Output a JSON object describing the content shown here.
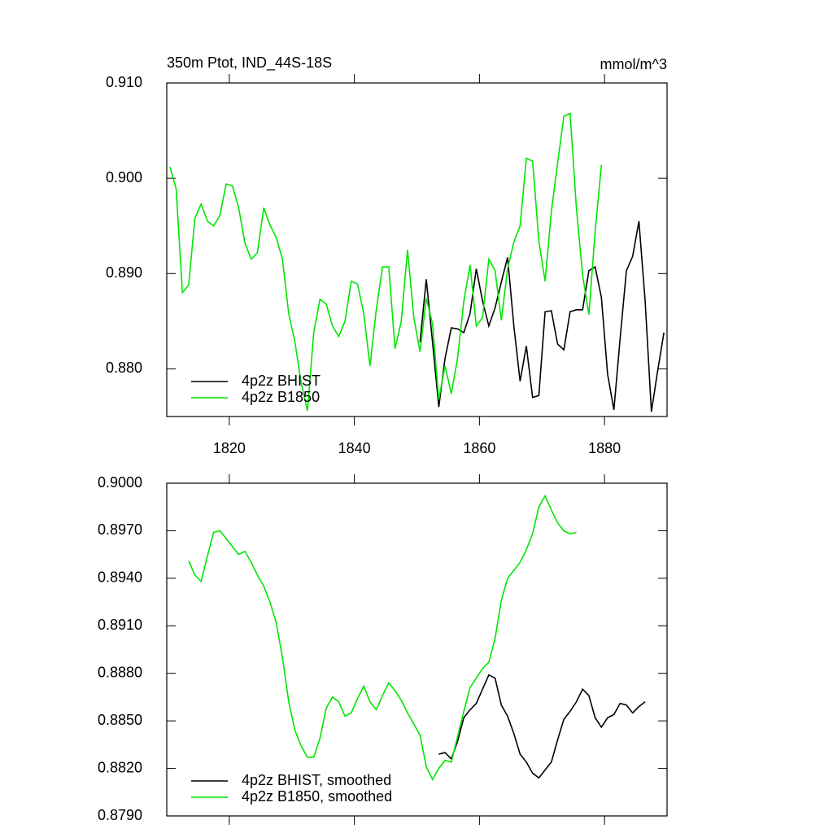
{
  "chart_data": [
    {
      "type": "line",
      "title": "350m Ptot, IND_44S-18S",
      "units": "mmol/m^3",
      "xlim": [
        1810,
        1890
      ],
      "xticks": [
        1820,
        1840,
        1860,
        1880
      ],
      "ylim": [
        0.875,
        0.91
      ],
      "yticks": [
        {
          "value": 0.88,
          "label": "0.880"
        },
        {
          "value": 0.89,
          "label": "0.890"
        },
        {
          "value": 0.9,
          "label": "0.900"
        },
        {
          "value": 0.91,
          "label": "0.910"
        }
      ],
      "legend": "lower left",
      "series": [
        {
          "name": "4p2z BHIST",
          "color": "#000000",
          "x": [
            1850.5,
            1851.5,
            1852.5,
            1853.5,
            1854.5,
            1855.5,
            1856.5,
            1857.5,
            1858.5,
            1859.5,
            1860.5,
            1861.5,
            1862.5,
            1863.5,
            1864.5,
            1865.5,
            1866.5,
            1867.5,
            1868.5,
            1869.5,
            1870.5,
            1871.5,
            1872.5,
            1873.5,
            1874.5,
            1875.5,
            1876.5,
            1877.5,
            1878.5,
            1879.5,
            1880.5,
            1881.5,
            1882.5,
            1883.5,
            1884.5,
            1885.5,
            1886.5,
            1887.5,
            1888.5,
            1889.5
          ],
          "values": [
            0.8828,
            0.8894,
            0.8828,
            0.876,
            0.8811,
            0.8843,
            0.8842,
            0.8838,
            0.8858,
            0.8905,
            0.8871,
            0.8845,
            0.8864,
            0.8891,
            0.8917,
            0.8845,
            0.8787,
            0.8824,
            0.877,
            0.8772,
            0.886,
            0.8861,
            0.8826,
            0.882,
            0.886,
            0.8862,
            0.8862,
            0.8903,
            0.8907,
            0.8875,
            0.8794,
            0.8757,
            0.8832,
            0.8903,
            0.8918,
            0.8955,
            0.8871,
            0.8755,
            0.8798,
            0.8838
          ]
        },
        {
          "name": "4p2z B1850",
          "color": "#00e600",
          "x": [
            1810.5,
            1811.5,
            1812.5,
            1813.5,
            1814.5,
            1815.5,
            1816.5,
            1817.5,
            1818.5,
            1819.5,
            1820.5,
            1821.5,
            1822.5,
            1823.5,
            1824.5,
            1825.5,
            1826.5,
            1827.5,
            1828.5,
            1829.5,
            1830.5,
            1831.5,
            1832.5,
            1833.5,
            1834.5,
            1835.5,
            1836.5,
            1837.5,
            1838.5,
            1839.5,
            1840.5,
            1841.5,
            1842.5,
            1843.5,
            1844.5,
            1845.5,
            1846.5,
            1847.5,
            1848.5,
            1849.5,
            1850.5,
            1851.5,
            1852.5,
            1853.5,
            1854.5,
            1855.5,
            1856.5,
            1857.5,
            1858.5,
            1859.5,
            1860.5,
            1861.5,
            1862.5,
            1863.5,
            1864.5,
            1865.5,
            1866.5,
            1867.5,
            1868.5,
            1869.5,
            1870.5,
            1871.5,
            1872.5,
            1873.5,
            1874.5,
            1875.5,
            1876.5,
            1877.5,
            1878.5,
            1879.5
          ],
          "values": [
            0.9012,
            0.8989,
            0.888,
            0.8888,
            0.8958,
            0.8973,
            0.8955,
            0.895,
            0.8961,
            0.8994,
            0.8992,
            0.8969,
            0.8932,
            0.8915,
            0.8922,
            0.8969,
            0.8951,
            0.8938,
            0.8915,
            0.8858,
            0.8828,
            0.8785,
            0.8756,
            0.8838,
            0.8873,
            0.8868,
            0.8845,
            0.8834,
            0.885,
            0.8892,
            0.8889,
            0.8858,
            0.8803,
            0.8862,
            0.8907,
            0.8907,
            0.8821,
            0.885,
            0.8925,
            0.8854,
            0.8818,
            0.8874,
            0.8847,
            0.8768,
            0.8803,
            0.8774,
            0.8811,
            0.8871,
            0.8909,
            0.8845,
            0.8854,
            0.8915,
            0.8903,
            0.8851,
            0.8905,
            0.8933,
            0.895,
            0.9021,
            0.9018,
            0.8934,
            0.8892,
            0.8965,
            0.9016,
            0.9065,
            0.9068,
            0.8969,
            0.8898,
            0.8857,
            0.8944,
            0.9014
          ]
        }
      ]
    },
    {
      "type": "line",
      "xlim": [
        1810,
        1890
      ],
      "xticks": [
        1820,
        1840,
        1860,
        1880
      ],
      "ylim": [
        0.879,
        0.9
      ],
      "yticks": [
        {
          "value": 0.879,
          "label": "0.8790"
        },
        {
          "value": 0.882,
          "label": "0.8820"
        },
        {
          "value": 0.885,
          "label": "0.8850"
        },
        {
          "value": 0.888,
          "label": "0.8880"
        },
        {
          "value": 0.891,
          "label": "0.8910"
        },
        {
          "value": 0.894,
          "label": "0.8940"
        },
        {
          "value": 0.897,
          "label": "0.8970"
        },
        {
          "value": 0.9,
          "label": "0.9000"
        }
      ],
      "legend": "lower left",
      "series": [
        {
          "name": "4p2z BHIST, smoothed",
          "color": "#000000",
          "x": [
            1853.5,
            1854.5,
            1855.5,
            1856.5,
            1857.5,
            1858.5,
            1859.5,
            1860.5,
            1861.5,
            1862.5,
            1863.5,
            1864.5,
            1865.5,
            1866.5,
            1867.5,
            1868.5,
            1869.5,
            1870.5,
            1871.5,
            1872.5,
            1873.5,
            1874.5,
            1875.5,
            1876.5,
            1877.5,
            1878.5,
            1879.5,
            1880.5,
            1881.5,
            1882.5,
            1883.5,
            1884.5,
            1885.5,
            1886.5
          ],
          "values": [
            0.8829,
            0.883,
            0.8826,
            0.8837,
            0.8852,
            0.8857,
            0.8861,
            0.887,
            0.8879,
            0.8877,
            0.886,
            0.8853,
            0.8842,
            0.8829,
            0.8824,
            0.8817,
            0.8814,
            0.8819,
            0.8824,
            0.8838,
            0.8851,
            0.8856,
            0.8862,
            0.887,
            0.8866,
            0.8852,
            0.8846,
            0.8852,
            0.8854,
            0.8861,
            0.886,
            0.8855,
            0.8859,
            0.8862
          ]
        },
        {
          "name": "4p2z B1850, smoothed",
          "color": "#00e600",
          "x": [
            1813.5,
            1814.5,
            1815.5,
            1816.5,
            1817.5,
            1818.5,
            1819.5,
            1820.5,
            1821.5,
            1822.5,
            1823.5,
            1824.5,
            1825.5,
            1826.5,
            1827.5,
            1828.5,
            1829.5,
            1830.5,
            1831.5,
            1832.5,
            1833.5,
            1834.5,
            1835.5,
            1836.5,
            1837.5,
            1838.5,
            1839.5,
            1840.5,
            1841.5,
            1842.5,
            1843.5,
            1844.5,
            1845.5,
            1846.5,
            1847.5,
            1848.5,
            1849.5,
            1850.5,
            1851.5,
            1852.5,
            1853.5,
            1854.5,
            1855.5,
            1856.5,
            1857.5,
            1858.5,
            1859.5,
            1860.5,
            1861.5,
            1862.5,
            1863.5,
            1864.5,
            1865.5,
            1866.5,
            1867.5,
            1868.5,
            1869.5,
            1870.5,
            1871.5,
            1872.5,
            1873.5,
            1874.5,
            1875.5
          ],
          "values": [
            0.8951,
            0.8942,
            0.8938,
            0.8954,
            0.8969,
            0.897,
            0.8965,
            0.896,
            0.8955,
            0.8957,
            0.895,
            0.8942,
            0.8935,
            0.8925,
            0.8912,
            0.889,
            0.8862,
            0.8844,
            0.8834,
            0.8827,
            0.8827,
            0.8839,
            0.8858,
            0.8865,
            0.8862,
            0.8853,
            0.8855,
            0.8864,
            0.8872,
            0.8862,
            0.8857,
            0.8866,
            0.8874,
            0.8869,
            0.8863,
            0.8855,
            0.8848,
            0.8841,
            0.8821,
            0.8813,
            0.882,
            0.8825,
            0.8824,
            0.884,
            0.8856,
            0.8871,
            0.8877,
            0.8883,
            0.8887,
            0.8902,
            0.8926,
            0.894,
            0.8945,
            0.895,
            0.8958,
            0.8968,
            0.8985,
            0.8992,
            0.8983,
            0.8975,
            0.897,
            0.8968,
            0.8969
          ]
        }
      ]
    }
  ]
}
